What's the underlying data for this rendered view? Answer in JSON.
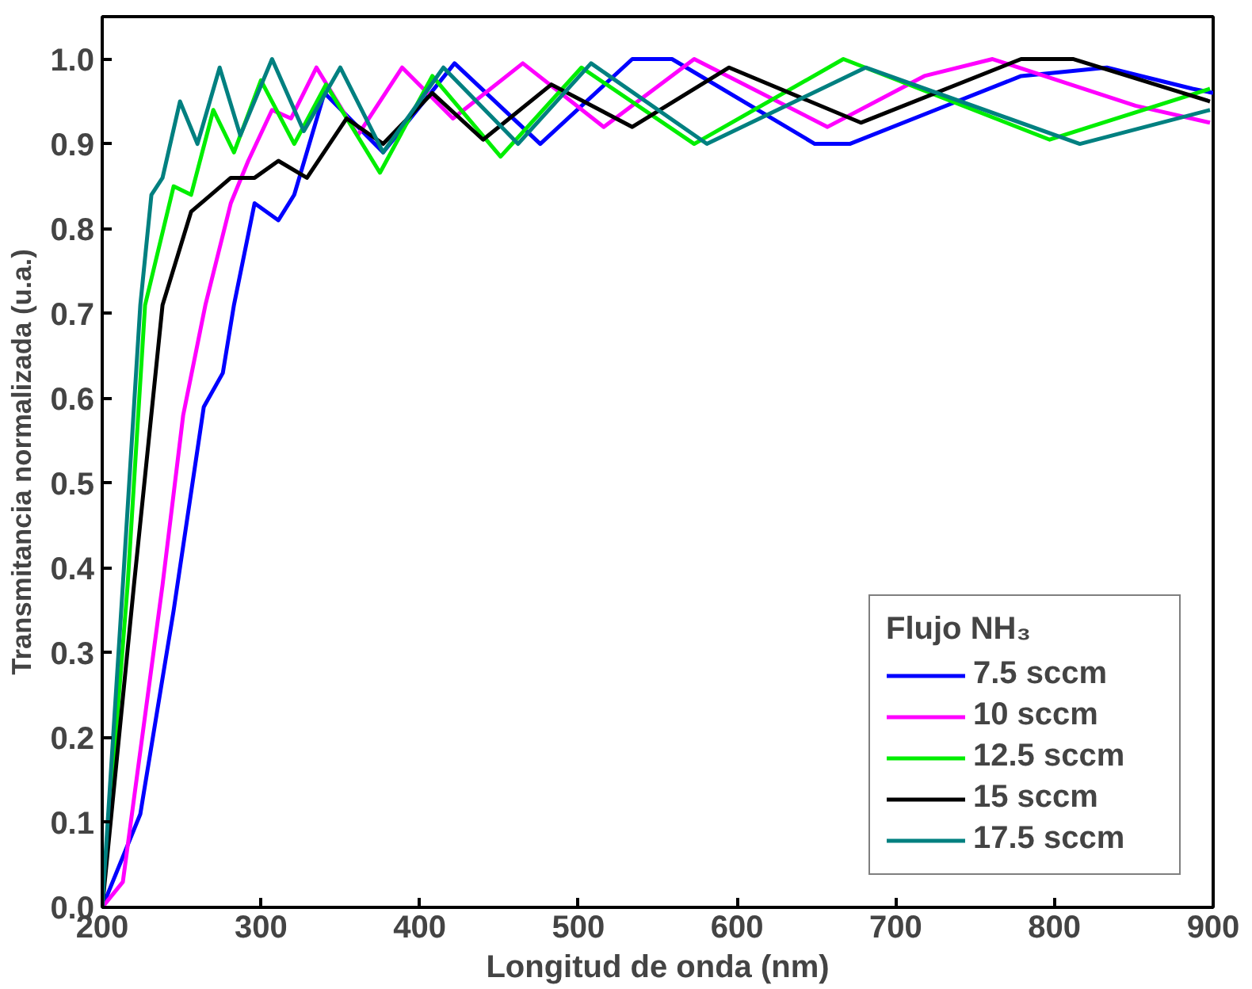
{
  "chart_data": {
    "type": "line",
    "xlabel": "Longitud de onda (nm)",
    "ylabel": "Transmitancia normalizada (u.a.)",
    "legend_title": "Flujo NH₃",
    "xlim": [
      200,
      900
    ],
    "ylim": [
      0,
      1.05
    ],
    "xticks": [
      200,
      300,
      400,
      500,
      600,
      700,
      800,
      900
    ],
    "yticks": [
      {
        "value": 0,
        "label": "0.0"
      },
      {
        "value": 0.1,
        "label": "0.1"
      },
      {
        "value": 0.2,
        "label": "0.2"
      },
      {
        "value": 0.3,
        "label": "0.3"
      },
      {
        "value": 0.4,
        "label": "0.4"
      },
      {
        "value": 0.5,
        "label": "0.5"
      },
      {
        "value": 0.6,
        "label": "0.6"
      },
      {
        "value": 0.7,
        "label": "0.7"
      },
      {
        "value": 0.8,
        "label": "0.8"
      },
      {
        "value": 0.9,
        "label": "0.9"
      },
      {
        "value": 1,
        "label": "1.0"
      }
    ],
    "grid": false,
    "legend": "bottom right",
    "marker": "none",
    "line_style": "solid",
    "series": [
      {
        "name": "7.5 sccm",
        "color": "#0000ff",
        "x": [
          200,
          224,
          245,
          264,
          276,
          283,
          296,
          311,
          321,
          340,
          377,
          422,
          476,
          534,
          559,
          649,
          671,
          725,
          779,
          833,
          887,
          900
        ],
        "values": [
          0.0,
          0.11,
          0.35,
          0.59,
          0.63,
          0.71,
          0.83,
          0.81,
          0.84,
          0.96,
          0.89,
          0.995,
          0.9,
          1.0,
          1.0,
          0.9,
          0.9,
          0.94,
          0.98,
          0.99,
          0.965,
          0.96
        ]
      },
      {
        "name": "10 sccm",
        "color": "#ff00ff",
        "x": [
          200,
          213,
          238,
          251,
          265,
          281,
          292,
          307,
          319,
          335,
          361,
          389,
          421,
          465,
          516,
          573,
          657,
          718,
          761,
          851,
          898
        ],
        "values": [
          0.0,
          0.03,
          0.38,
          0.58,
          0.71,
          0.83,
          0.88,
          0.94,
          0.93,
          0.99,
          0.91,
          0.99,
          0.93,
          0.995,
          0.92,
          1.0,
          0.92,
          0.98,
          1.0,
          0.945,
          0.925
        ]
      },
      {
        "name": "12.5 sccm",
        "color": "#00ee00",
        "x": [
          200,
          216,
          227,
          245,
          256,
          270,
          283,
          300,
          321,
          341,
          375,
          408,
          451,
          502,
          573,
          667,
          797,
          898
        ],
        "values": [
          0.0,
          0.38,
          0.71,
          0.85,
          0.84,
          0.94,
          0.89,
          0.975,
          0.9,
          0.97,
          0.866,
          0.98,
          0.885,
          0.99,
          0.9,
          1.0,
          0.905,
          0.965
        ]
      },
      {
        "name": "15 sccm",
        "color": "#000000",
        "x": [
          200,
          220,
          238,
          256,
          281,
          296,
          311,
          329,
          354,
          377,
          408,
          440,
          483,
          534,
          595,
          678,
          779,
          812,
          898
        ],
        "values": [
          0.0,
          0.38,
          0.71,
          0.82,
          0.86,
          0.86,
          0.88,
          0.86,
          0.93,
          0.9,
          0.96,
          0.905,
          0.97,
          0.92,
          0.99,
          0.925,
          1.0,
          1.0,
          0.95
        ]
      },
      {
        "name": "17.5 sccm",
        "color": "#008080",
        "x": [
          200,
          213,
          224,
          231,
          238,
          249,
          260,
          274,
          287,
          307,
          327,
          350,
          377,
          415,
          462,
          508,
          581,
          681,
          816,
          898
        ],
        "values": [
          0.0,
          0.38,
          0.71,
          0.84,
          0.86,
          0.95,
          0.9,
          0.99,
          0.91,
          1.0,
          0.915,
          0.99,
          0.89,
          0.99,
          0.9,
          0.995,
          0.9,
          0.99,
          0.9,
          0.94
        ]
      }
    ]
  }
}
